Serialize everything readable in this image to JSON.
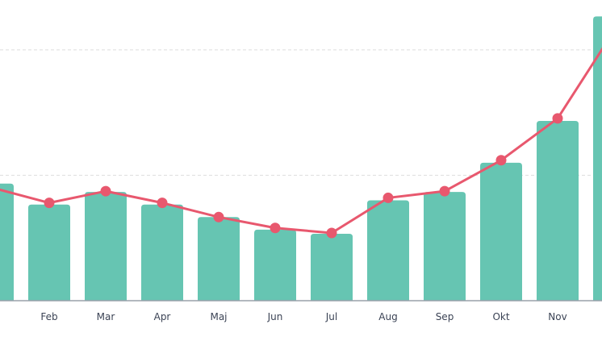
{
  "chart_data": {
    "type": "bar",
    "categories": [
      "",
      "Feb",
      "Mar",
      "Apr",
      "Maj",
      "Jun",
      "Jul",
      "Aug",
      "Sep",
      "Okt",
      "Nov",
      ""
    ],
    "series": [
      {
        "type": "bar",
        "values": [
          140,
          115,
          130,
          115,
          100,
          85,
          80,
          120,
          130,
          165,
          215,
          340
        ]
      },
      {
        "type": "line",
        "values": [
          135,
          117,
          131,
          117,
          100,
          87,
          81,
          123,
          131,
          168,
          218,
          323
        ]
      }
    ],
    "title": "",
    "xlabel": "",
    "ylabel": "",
    "ylim": [
      0,
      350
    ],
    "grid": true,
    "legend": "none",
    "colors": {
      "bar": "#66c5b2",
      "line": "#e8586e",
      "grid": "#dddddd",
      "axis": "#9aa0aa",
      "text": "#3b4355"
    }
  }
}
